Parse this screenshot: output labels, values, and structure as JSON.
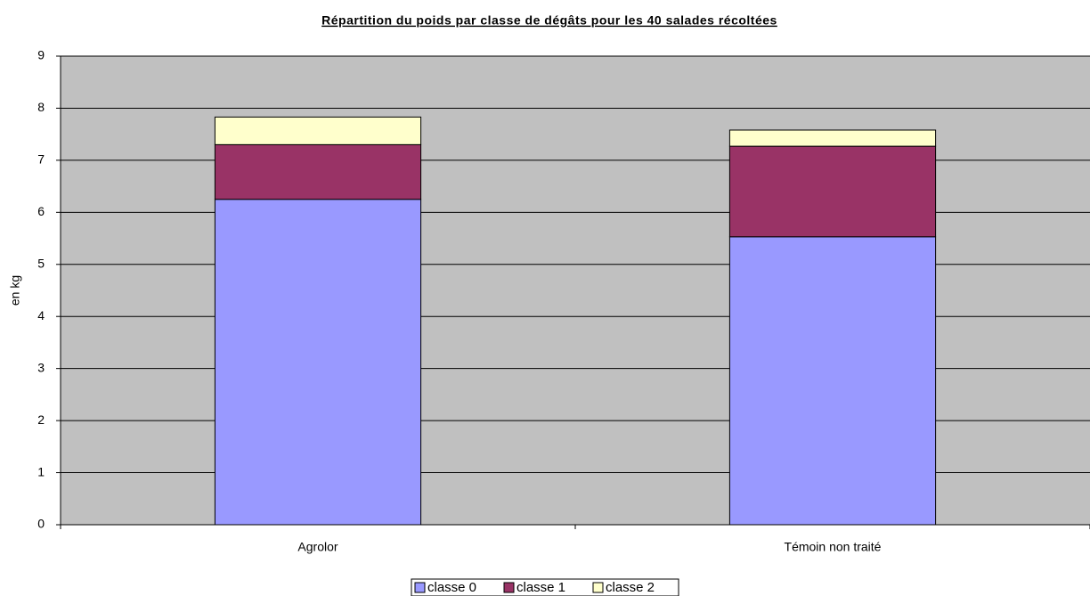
{
  "chart_data": {
    "type": "bar",
    "stacked": true,
    "title": "Répartition du poids par classe de dégâts pour les 40 salades récoltées",
    "y_label": "en kg",
    "categories": [
      "Agrolor",
      "Témoin non traité"
    ],
    "series": [
      {
        "name": "classe 0",
        "color": "#9999ff",
        "values": [
          6.25,
          5.53
        ]
      },
      {
        "name": "classe 1",
        "color": "#993366",
        "values": [
          1.05,
          1.74
        ]
      },
      {
        "name": "classe 2",
        "color": "#ffffcc",
        "values": [
          0.53,
          0.31
        ]
      }
    ],
    "ylim": [
      0,
      9
    ],
    "yticks": [
      0,
      1,
      2,
      3,
      4,
      5,
      6,
      7,
      8,
      9
    ],
    "grid": true,
    "plot_background": "#c0c0c0",
    "legend": "bottom"
  }
}
